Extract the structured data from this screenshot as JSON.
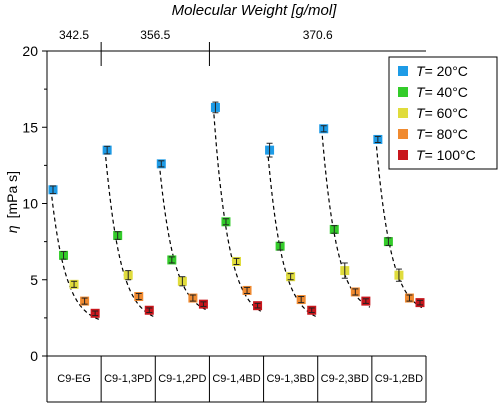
{
  "chart_data": {
    "type": "scatter",
    "title": "",
    "top_axis": {
      "label": "Molecular Weight [g/mol]",
      "groups": [
        {
          "label": "342.5",
          "span": [
            "C9-EG"
          ]
        },
        {
          "label": "356.5",
          "span": [
            "C9-1,3PD",
            "C9-1,2PD"
          ]
        },
        {
          "label": "370.6",
          "span": [
            "C9-1,4BD",
            "C9-1,3BD",
            "C9-2,3BD",
            "C9-1,2BD"
          ]
        }
      ]
    },
    "ylabel_symbol": "η",
    "ylabel_unit": "[mPa s]",
    "ylim": [
      0,
      20
    ],
    "yticks": [
      "0",
      "5",
      "10",
      "15",
      "20"
    ],
    "categories": [
      "C9-EG",
      "C9-1,3PD",
      "C9-1,2PD",
      "C9-1,4BD",
      "C9-1,3BD",
      "C9-2,3BD",
      "C9-1,2BD"
    ],
    "series": [
      {
        "name": "T= 20°C",
        "symbol": "T",
        "rest": "= 20°C",
        "color": "#1e9be6",
        "values": [
          10.9,
          13.5,
          12.6,
          16.3,
          13.5,
          14.9,
          14.2
        ],
        "errors": [
          0.25,
          0.25,
          0.2,
          0.35,
          0.45,
          0.2,
          0.2
        ]
      },
      {
        "name": "T= 40°C",
        "symbol": "T",
        "rest": "= 40°C",
        "color": "#33cc2a",
        "values": [
          6.6,
          7.9,
          6.3,
          8.8,
          7.2,
          8.3,
          7.5
        ],
        "errors": [
          0.25,
          0.25,
          0.2,
          0.2,
          0.25,
          0.25,
          0.25
        ]
      },
      {
        "name": "T= 60°C",
        "symbol": "T",
        "rest": "= 60°C",
        "color": "#e0dc3c",
        "values": [
          4.7,
          5.3,
          4.9,
          6.2,
          5.2,
          5.6,
          5.3
        ],
        "errors": [
          0.2,
          0.3,
          0.3,
          0.2,
          0.2,
          0.5,
          0.4
        ]
      },
      {
        "name": "T= 80°C",
        "symbol": "T",
        "rest": "= 80°C",
        "color": "#f08a30",
        "values": [
          3.6,
          3.9,
          3.8,
          4.3,
          3.7,
          4.2,
          3.8
        ],
        "errors": [
          0.2,
          0.2,
          0.2,
          0.2,
          0.2,
          0.2,
          0.2
        ]
      },
      {
        "name": "T= 100°C",
        "symbol": "T",
        "rest": "= 100°C",
        "color": "#c8161c",
        "values": [
          2.8,
          3.0,
          3.4,
          3.3,
          3.0,
          3.6,
          3.5
        ],
        "errors": [
          0.15,
          0.15,
          0.15,
          0.15,
          0.15,
          0.15,
          0.15
        ]
      }
    ],
    "fit_lines": "dashed",
    "legend": "top-right",
    "grid": false
  }
}
